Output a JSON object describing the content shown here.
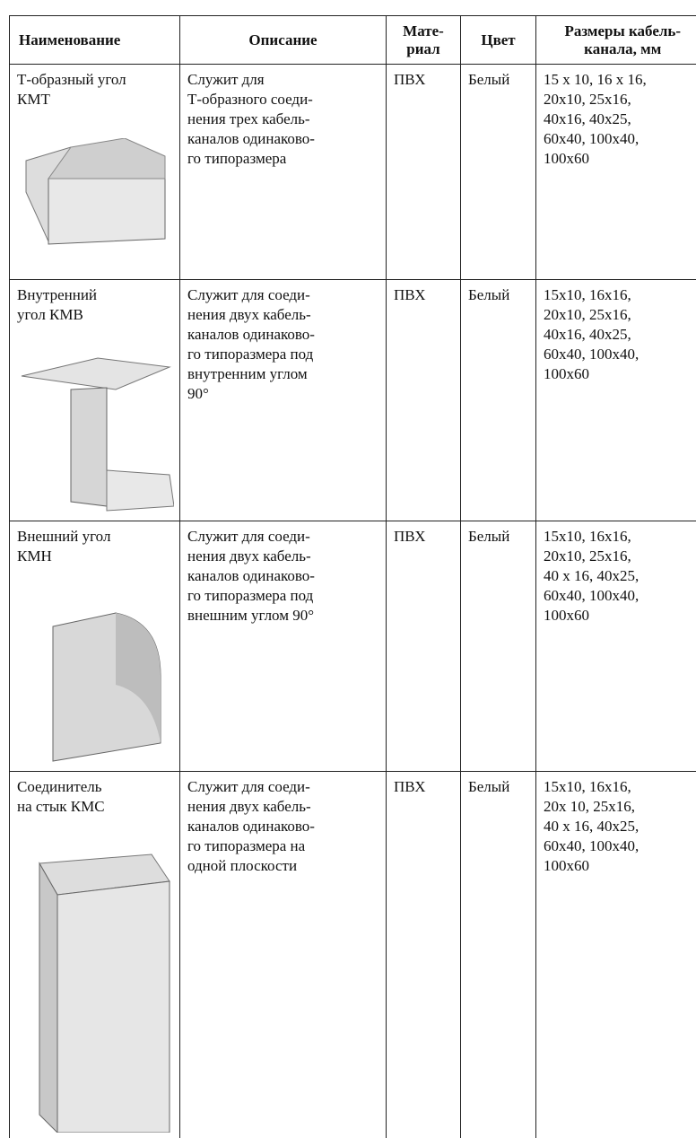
{
  "table": {
    "header": [
      "Наименование",
      "Описание",
      "Мате-\nриал",
      "Цвет",
      "Размеры кабель-\nканала, мм"
    ],
    "rows": [
      {
        "name": "Т-образный угол\nКМТ",
        "description": "Служит для\nТ-образного соеди-\nнения трех кабель-\nканалов одинаково-\nго типоразмера",
        "material": "ПВХ",
        "color": "Белый",
        "sizes": "15 x 10, 16 x 16,\n20x10, 25x16,\n40x16, 40x25,\n60x40, 100x40,\n100x60"
      },
      {
        "name": "Внутренний\nугол КМВ",
        "description": "Служит для соеди-\nнения двух кабель-\nканалов одинаково-\nго типоразмера под\nвнутренним углом\n90°",
        "material": "ПВХ",
        "color": "Белый",
        "sizes": "15x10, 16x16,\n20x10, 25x16,\n40x16, 40x25,\n60x40, 100x40,\n100x60"
      },
      {
        "name": "Внешний угол\nКМН",
        "description": "Служит для соеди-\nнения двух кабель-\nканалов одинаково-\nго типоразмера под\nвнешним углом 90°",
        "material": "ПВХ",
        "color": "Белый",
        "sizes": "15x10, 16x16,\n20x10, 25x16,\n40 x 16, 40x25,\n60x40, 100x40,\n100x60"
      },
      {
        "name": "Соединитель\nна стык КМС",
        "description": "Служит для соеди-\nнения двух кабель-\nканалов одинаково-\nго типоразмера на\nодной плоскости",
        "material": "ПВХ",
        "color": "Белый",
        "sizes": "15x10, 16x16,\n20x 10, 25x16,\n40 x 16, 40x25,\n60x40, 100x40,\n100x60"
      }
    ]
  }
}
